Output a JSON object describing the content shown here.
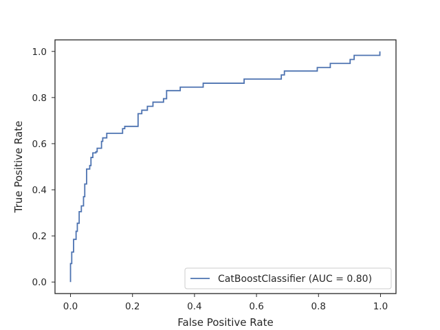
{
  "chart_data": {
    "type": "line",
    "title": "",
    "xlabel": "False Positive Rate",
    "ylabel": "True Positive Rate",
    "xlim": [
      -0.05,
      1.05
    ],
    "ylim": [
      -0.05,
      1.05
    ],
    "xticks": [
      0.0,
      0.2,
      0.4,
      0.6,
      0.8,
      1.0
    ],
    "yticks": [
      0.0,
      0.2,
      0.4,
      0.6,
      0.8,
      1.0
    ],
    "xtick_labels": [
      "0.0",
      "0.2",
      "0.4",
      "0.6",
      "0.8",
      "1.0"
    ],
    "ytick_labels": [
      "0.0",
      "0.2",
      "0.4",
      "0.6",
      "0.8",
      "1.0"
    ],
    "grid": false,
    "legend_position": "lower-right",
    "series": [
      {
        "name": "CatBoostClassifier (AUC = 0.80)",
        "color": "#4c72b0",
        "x": [
          0.0,
          0.0,
          0.004,
          0.004,
          0.01,
          0.01,
          0.018,
          0.018,
          0.022,
          0.022,
          0.028,
          0.028,
          0.035,
          0.035,
          0.042,
          0.042,
          0.046,
          0.046,
          0.052,
          0.052,
          0.062,
          0.062,
          0.066,
          0.066,
          0.072,
          0.072,
          0.082,
          0.082,
          0.086,
          0.086,
          0.1,
          0.1,
          0.104,
          0.104,
          0.11,
          0.11,
          0.117,
          0.117,
          0.168,
          0.168,
          0.175,
          0.175,
          0.184,
          0.184,
          0.218,
          0.218,
          0.23,
          0.23,
          0.248,
          0.248,
          0.266,
          0.266,
          0.3,
          0.3,
          0.31,
          0.31,
          0.354,
          0.354,
          0.428,
          0.428,
          0.56,
          0.56,
          0.68,
          0.68,
          0.69,
          0.69,
          0.796,
          0.796,
          0.838,
          0.838,
          0.902,
          0.902,
          0.915,
          0.915,
          0.998,
          0.998
        ],
        "y": [
          0.0,
          0.08,
          0.08,
          0.13,
          0.13,
          0.185,
          0.185,
          0.22,
          0.22,
          0.255,
          0.255,
          0.305,
          0.305,
          0.33,
          0.33,
          0.37,
          0.37,
          0.425,
          0.425,
          0.49,
          0.49,
          0.505,
          0.505,
          0.54,
          0.54,
          0.56,
          0.56,
          0.565,
          0.565,
          0.58,
          0.58,
          0.61,
          0.61,
          0.625,
          0.625,
          0.625,
          0.625,
          0.645,
          0.645,
          0.665,
          0.665,
          0.675,
          0.675,
          0.675,
          0.675,
          0.73,
          0.73,
          0.745,
          0.745,
          0.762,
          0.762,
          0.78,
          0.78,
          0.795,
          0.795,
          0.83,
          0.83,
          0.845,
          0.845,
          0.862,
          0.862,
          0.88,
          0.88,
          0.898,
          0.898,
          0.915,
          0.915,
          0.93,
          0.93,
          0.948,
          0.948,
          0.965,
          0.965,
          0.983,
          0.983,
          1.0
        ]
      }
    ]
  }
}
